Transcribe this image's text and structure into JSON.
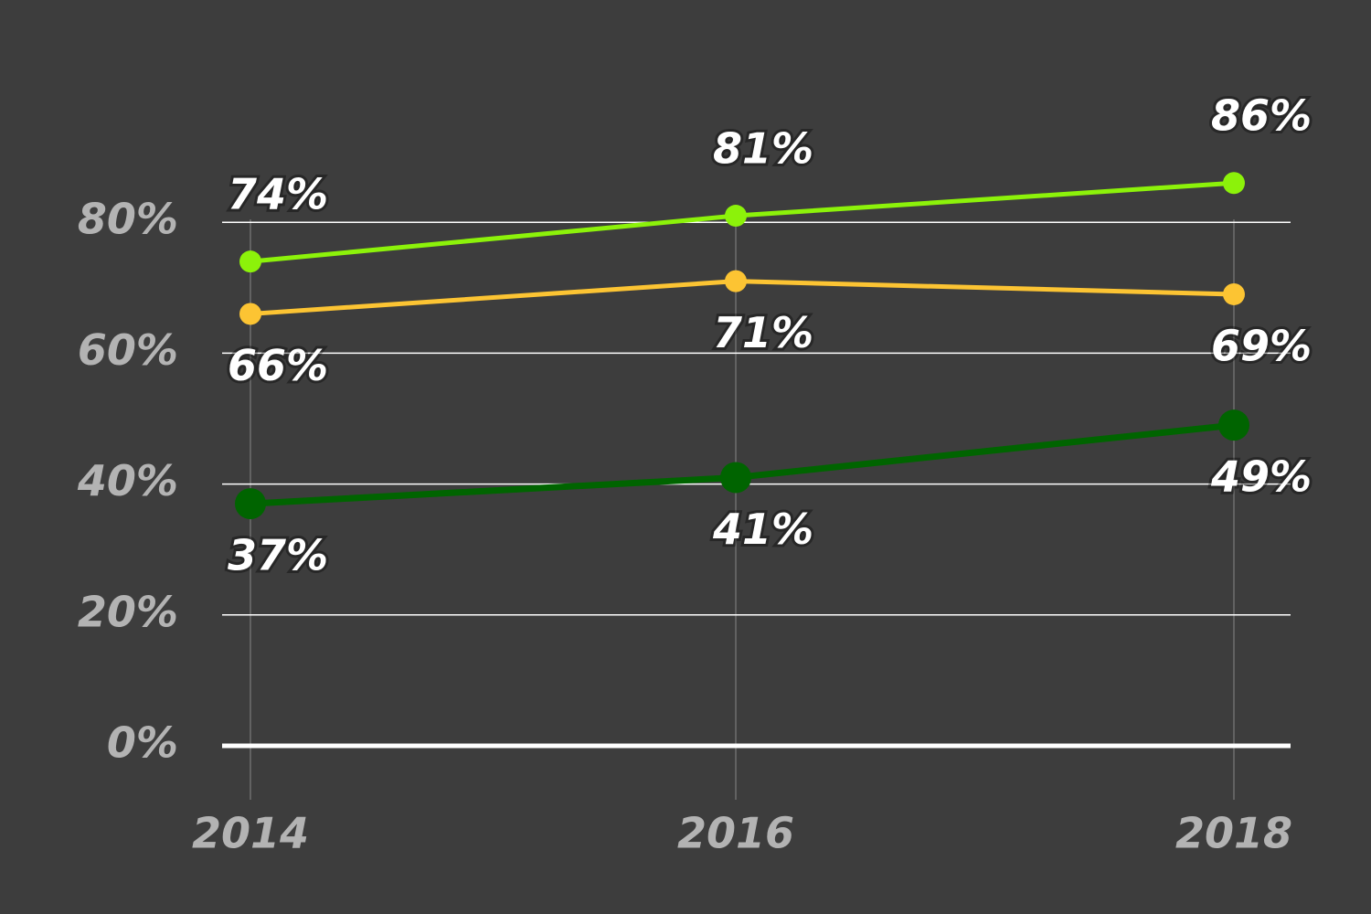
{
  "chart_data": {
    "type": "line",
    "categories": [
      "2014",
      "2016",
      "2018"
    ],
    "series": [
      {
        "color": "#8cf20a",
        "values": [
          74,
          81,
          86
        ],
        "value_labels": [
          "74%",
          "81%",
          "86%"
        ]
      },
      {
        "color": "#fcc433",
        "values": [
          66,
          71,
          69
        ],
        "value_labels": [
          "66%",
          "71%",
          "69%"
        ]
      },
      {
        "color": "#006400",
        "values": [
          37,
          41,
          49
        ],
        "value_labels": [
          "37%",
          "41%",
          "49%"
        ]
      }
    ],
    "ylim": [
      0,
      100
    ],
    "yticks": [
      {
        "value": 0,
        "label": "0%"
      },
      {
        "value": 20,
        "label": "20%"
      },
      {
        "value": 40,
        "label": "40%"
      },
      {
        "value": 60,
        "label": "60%"
      },
      {
        "value": 80,
        "label": "80%"
      }
    ],
    "grid": true
  }
}
